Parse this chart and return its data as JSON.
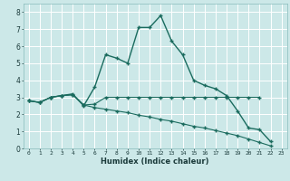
{
  "title": "",
  "xlabel": "Humidex (Indice chaleur)",
  "bg_color": "#cce8e8",
  "grid_color": "#ffffff",
  "line_color": "#1a6b5e",
  "xlim": [
    -0.5,
    23.5
  ],
  "ylim": [
    0,
    8.5
  ],
  "xticks": [
    0,
    1,
    2,
    3,
    4,
    5,
    6,
    7,
    8,
    9,
    10,
    11,
    12,
    13,
    14,
    15,
    16,
    17,
    18,
    19,
    20,
    21,
    22,
    23
  ],
  "yticks": [
    0,
    1,
    2,
    3,
    4,
    5,
    6,
    7,
    8
  ],
  "line1_y": [
    2.8,
    2.7,
    3.0,
    3.1,
    3.2,
    2.5,
    3.6,
    5.5,
    5.3,
    5.0,
    7.1,
    7.1,
    7.8,
    6.3,
    5.5,
    4.0,
    3.7,
    3.5,
    3.1,
    2.2,
    1.2,
    1.1,
    0.4,
    null
  ],
  "line2_y": [
    2.8,
    2.7,
    3.0,
    3.1,
    3.15,
    2.55,
    2.6,
    3.0,
    3.0,
    3.0,
    3.0,
    3.0,
    3.0,
    3.0,
    3.0,
    3.0,
    3.0,
    3.0,
    3.0,
    3.0,
    3.0,
    3.0,
    null,
    null
  ],
  "line3_y": [
    2.8,
    2.7,
    3.0,
    3.1,
    3.15,
    2.55,
    2.4,
    2.3,
    2.2,
    2.1,
    1.95,
    1.85,
    1.7,
    1.6,
    1.45,
    1.3,
    1.2,
    1.05,
    0.9,
    0.75,
    0.55,
    0.35,
    0.15,
    null
  ]
}
